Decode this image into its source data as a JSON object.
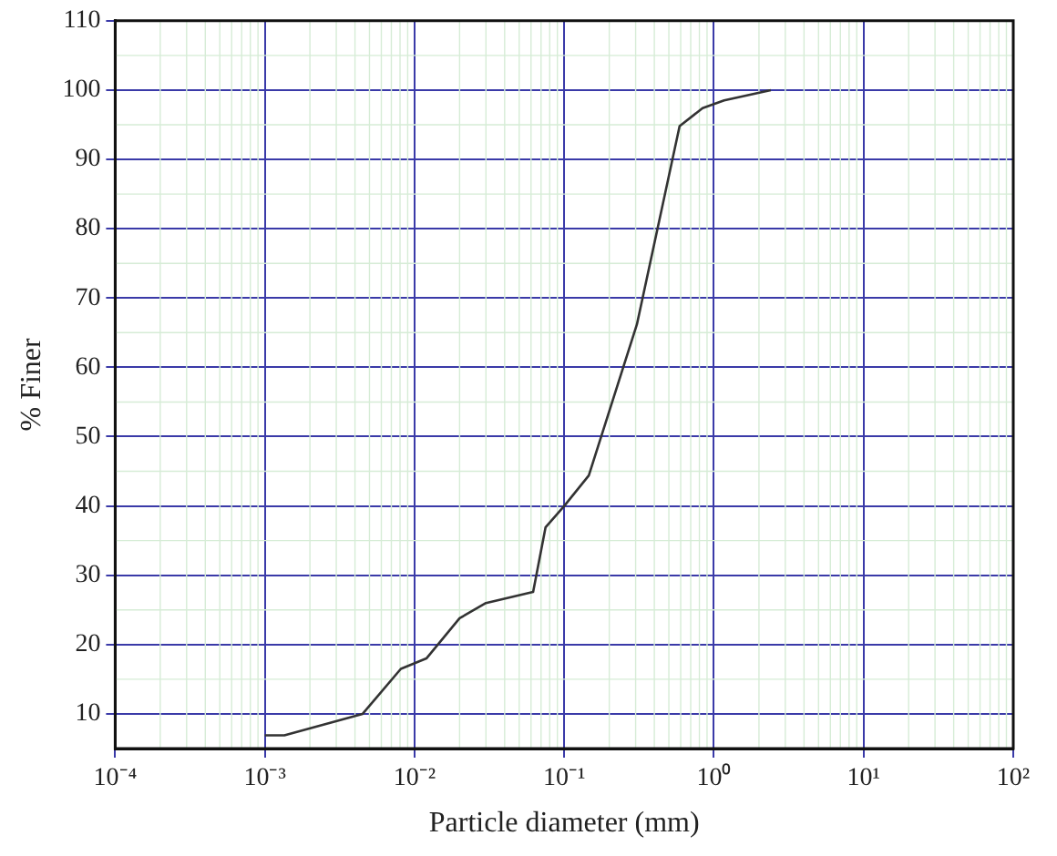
{
  "chart_data": {
    "type": "line",
    "xlabel": "Particle diameter (mm)",
    "ylabel": "% Finer",
    "log": "x",
    "grid": true,
    "legend": false,
    "marker": "none",
    "line_style": "solid",
    "xlim": [
      0.0001,
      100
    ],
    "ylim": [
      5,
      110
    ],
    "xticks": [
      {
        "value": 0.0001,
        "label": "10⁻⁴"
      },
      {
        "value": 0.001,
        "label": "10⁻³"
      },
      {
        "value": 0.01,
        "label": "10⁻²"
      },
      {
        "value": 0.1,
        "label": "10⁻¹"
      },
      {
        "value": 1,
        "label": "10⁰"
      },
      {
        "value": 10,
        "label": "10¹"
      },
      {
        "value": 100,
        "label": "10²"
      }
    ],
    "yticks": [
      10,
      20,
      30,
      40,
      50,
      60,
      70,
      80,
      90,
      100,
      110
    ],
    "series": [
      {
        "color": "#333333",
        "x": [
          0.001,
          0.00135,
          0.0045,
          0.0081,
          0.012,
          0.02,
          0.03,
          0.062,
          0.075,
          0.1,
          0.146,
          0.306,
          0.59,
          0.84,
          1.17,
          2.4
        ],
        "values": [
          6.9,
          6.9,
          10,
          16.5,
          18,
          23.8,
          26,
          27.6,
          36.9,
          40,
          44.4,
          66.2,
          94.8,
          97.4,
          98.5,
          100
        ]
      }
    ]
  }
}
